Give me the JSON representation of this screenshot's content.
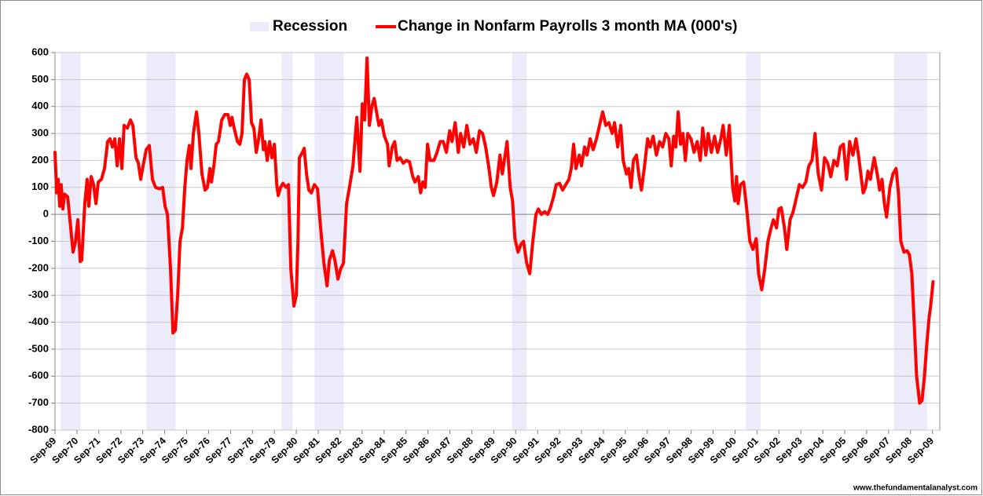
{
  "chart_data": {
    "type": "line",
    "x": [
      0,
      0.9,
      1.7,
      2.6,
      3.4,
      4.3,
      5.2,
      6.9,
      8.6,
      9.9,
      11.2,
      12.5,
      13.8,
      14.6,
      16.3,
      17.6,
      18.5,
      19.8,
      21.1,
      22.4,
      23.7,
      25.4,
      27.1,
      28.8,
      30.1,
      31.4,
      32.7,
      34.0,
      35.3,
      36.6,
      37.8,
      39.6,
      41.3,
      42.6,
      44.3,
      45.6,
      46.9,
      48.2,
      49.9,
      51.6,
      53.3,
      55.0,
      57.2,
      58.9,
      60.2,
      61.5,
      63.2,
      64.5,
      65.8,
      67.1,
      68.4,
      69.7,
      71.0,
      72.2,
      73.5,
      74.4,
      75.7,
      77.4,
      78.7,
      80.4,
      82.1,
      83.4,
      84.7,
      85.6,
      86.9,
      88.2,
      89.4,
      91.2,
      92.9,
      94.6,
      95.9,
      96.8,
      98.0,
      99.8,
      101.1,
      102.3,
      103.6,
      104.9,
      106.2,
      107.5,
      108.8,
      110.1,
      111.4,
      112.7,
      114.0,
      114.8,
      116.1,
      117.4,
      118.7,
      120.0,
      121.3,
      122.1,
      123.4,
      124.7,
      126.4,
      127.7,
      129.0,
      130.7,
      132.0,
      132.9,
      133.7,
      135.0,
      136.3,
      137.6,
      138.9,
      140.2,
      141.9,
      143.6,
      145.3,
      147.1,
      148.8,
      150.1,
      151.8,
      153.1,
      154.8,
      156.1,
      157.8,
      159.5,
      161.3,
      163.0,
      165.1,
      166.8,
      168.1,
      169.4,
      170.7,
      172.0,
      173.3,
      174.6,
      175.9,
      177.2,
      178.5,
      180.2,
      181.9,
      182.8,
      184.5,
      185.8,
      187.1,
      188.8,
      190.5,
      192.2,
      193.9,
      195.7,
      196.9,
      198.7,
      200.0,
      201.2,
      202.5,
      203.8,
      205.1,
      207.3,
      209.0,
      210.7,
      212.4,
      214.1,
      215.9,
      217.2,
      218.9,
      220.6,
      221.9,
      223.6,
      225.3,
      227.0,
      228.8,
      230.5,
      232.2,
      233.9,
      235.6,
      237.4,
      238.7,
      239.9,
      241.7,
      243.4,
      244.7,
      246.0,
      247.3,
      249.0,
      250.3,
      251.6,
      253.3,
      255.0,
      256.3,
      258.0,
      259.7,
      261.4,
      263.1,
      264.4,
      266.1,
      267.8,
      269.5,
      270.8,
      272.5,
      274.2,
      276.0,
      277.7,
      279.4,
      281.1,
      282.4,
      283.7,
      285.0,
      286.8,
      288.0,
      289.7,
      291.0,
      292.7,
      294.4,
      296.2,
      297.9,
      299.6,
      301.3,
      303.0,
      304.8,
      306.1,
      307.8,
      309.5,
      310.8,
      312.6,
      313.8,
      315.1,
      316.4,
      318.1,
      319.5,
      320.8,
      322.5,
      324.2,
      325.5,
      327.2,
      329.0,
      330.7,
      332.4,
      334.1,
      335.8,
      337.1,
      338.4,
      339.6,
      340.9,
      342.2,
      343.5,
      344.8,
      346.1,
      347.9,
      349.6,
      351.3,
      353.0,
      354.3,
      356.0,
      357.3,
      359.1,
      360.8,
      362.5,
      364.2,
      365.5,
      367.2,
      368.9,
      370.7,
      371.9,
      372.8,
      373.7,
      375.0,
      376.7,
      378.4,
      380.1,
      381.8,
      383.6,
      384.9,
      386.6,
      388.3,
      390.0,
      391.7,
      393.0,
      394.7,
      396.0,
      397.3,
      399.0,
      400.3,
      402.1,
      403.8,
      405.5,
      407.2,
      408.9,
      410.7,
      412.4,
      414.1,
      415.8,
      417.5,
      419.3,
      421.0,
      422.7,
      424.4,
      426.1,
      427.9,
      429.6,
      431.3,
      433.0,
      434.7,
      436.5,
      438.2,
      439.5,
      440.8,
      442.1,
      443.4,
      444.7,
      446.0,
      448.1,
      449.8,
      451.1,
      452.4,
      453.7,
      454.9,
      456.7,
      458.4,
      460.1,
      461.4,
      462.7,
      464.4,
      466.1,
      467.4,
      468.7,
      470.0,
      471.3,
      473.0,
      474.3,
      475.6,
      476.9,
      478.2,
      479.0,
      480.3
    ],
    "xlim": [
      0,
      484
    ],
    "xticks": [
      {
        "value": 0,
        "label": "Sep-69"
      },
      {
        "value": 12,
        "label": "Sep-70"
      },
      {
        "value": 24,
        "label": "Sep-71"
      },
      {
        "value": 36,
        "label": "Sep-72"
      },
      {
        "value": 48,
        "label": "Sep-73"
      },
      {
        "value": 60,
        "label": "Sep-74"
      },
      {
        "value": 72,
        "label": "Sep-75"
      },
      {
        "value": 84,
        "label": "Sep-76"
      },
      {
        "value": 96,
        "label": "Sep-77"
      },
      {
        "value": 108,
        "label": "Sep-78"
      },
      {
        "value": 120,
        "label": "Sep-79"
      },
      {
        "value": 132,
        "label": "Sep-80"
      },
      {
        "value": 144,
        "label": "Sep-81"
      },
      {
        "value": 156,
        "label": "Sep-82"
      },
      {
        "value": 168,
        "label": "Sep-83"
      },
      {
        "value": 180,
        "label": "Sep-84"
      },
      {
        "value": 192,
        "label": "Sep-85"
      },
      {
        "value": 204,
        "label": "Sep-86"
      },
      {
        "value": 216,
        "label": "Sep-87"
      },
      {
        "value": 228,
        "label": "Sep-88"
      },
      {
        "value": 240,
        "label": "Sep-89"
      },
      {
        "value": 252,
        "label": "Sep-90"
      },
      {
        "value": 264,
        "label": "Sep-91"
      },
      {
        "value": 276,
        "label": "Sep-92"
      },
      {
        "value": 288,
        "label": "Sep-93"
      },
      {
        "value": 300,
        "label": "Sep-94"
      },
      {
        "value": 312,
        "label": "Sep-95"
      },
      {
        "value": 324,
        "label": "Sep-96"
      },
      {
        "value": 336,
        "label": "Sep-97"
      },
      {
        "value": 348,
        "label": "Sep-98"
      },
      {
        "value": 360,
        "label": "Sep-99"
      },
      {
        "value": 372,
        "label": "Sep-00"
      },
      {
        "value": 384,
        "label": "Sep-01"
      },
      {
        "value": 396,
        "label": "Sep-02"
      },
      {
        "value": 408,
        "label": "Sep-03"
      },
      {
        "value": 420,
        "label": "Sep-04"
      },
      {
        "value": 432,
        "label": "Sep-05"
      },
      {
        "value": 444,
        "label": "Sep-06"
      },
      {
        "value": 456,
        "label": "Sep-07"
      },
      {
        "value": 468,
        "label": "Sep-08"
      },
      {
        "value": 480,
        "label": "Sep-09"
      }
    ],
    "ylim": [
      -800,
      600
    ],
    "yticks": [
      -800,
      -700,
      -600,
      -500,
      -400,
      -300,
      -200,
      -100,
      0,
      100,
      200,
      300,
      400,
      500,
      600
    ],
    "grid": true,
    "legend": "top",
    "recessions": {
      "name": "Recession",
      "color": "#ebebfa",
      "spans": [
        [
          3,
          14
        ],
        [
          50,
          66
        ],
        [
          124,
          130
        ],
        [
          142,
          158
        ],
        [
          250,
          258
        ],
        [
          378,
          386
        ],
        [
          459,
          477
        ]
      ]
    },
    "series": [
      {
        "name": "Change in Nonfarm Payrolls 3 month MA (000's)",
        "color": "#ff0000",
        "values": [
          230,
          80,
          130,
          30,
          110,
          20,
          75,
          65,
          -50,
          -140,
          -100,
          -20,
          -175,
          -170,
          40,
          130,
          30,
          140,
          110,
          40,
          120,
          130,
          170,
          270,
          280,
          250,
          280,
          180,
          280,
          170,
          330,
          320,
          350,
          330,
          210,
          190,
          130,
          180,
          240,
          255,
          130,
          100,
          95,
          100,
          30,
          0,
          -200,
          -440,
          -430,
          -300,
          -100,
          -50,
          100,
          200,
          255,
          170,
          300,
          380,
          300,
          150,
          90,
          100,
          170,
          120,
          180,
          260,
          270,
          350,
          370,
          370,
          330,
          360,
          320,
          270,
          260,
          300,
          500,
          520,
          500,
          340,
          320,
          230,
          280,
          350,
          240,
          270,
          200,
          270,
          210,
          260,
          110,
          70,
          100,
          115,
          100,
          110,
          -200,
          -340,
          -300,
          -100,
          210,
          225,
          245,
          150,
          90,
          80,
          110,
          95,
          -50,
          -180,
          -265,
          -170,
          -135,
          -170,
          -240,
          -205,
          -180,
          40,
          110,
          180,
          360,
          160,
          410,
          350,
          580,
          330,
          400,
          430,
          380,
          330,
          350,
          290,
          260,
          180,
          250,
          270,
          200,
          210,
          190,
          200,
          195,
          140,
          120,
          140,
          80,
          120,
          100,
          260,
          200,
          200,
          230,
          270,
          270,
          230,
          310,
          270,
          340,
          230,
          300,
          250,
          330,
          260,
          280,
          230,
          310,
          300,
          250,
          170,
          100,
          70,
          120,
          220,
          150,
          210,
          270,
          100,
          50,
          -90,
          -140,
          -110,
          -100,
          -180,
          -220,
          -100,
          0,
          20,
          0,
          10,
          0,
          20,
          60,
          110,
          115,
          90,
          110,
          130,
          170,
          260,
          170,
          220,
          180,
          250,
          220,
          280,
          240,
          280,
          330,
          380,
          330,
          340,
          300,
          340,
          250,
          330,
          200,
          150,
          170,
          100,
          200,
          220,
          140,
          90,
          180,
          280,
          250,
          290,
          220,
          270,
          250,
          300,
          280,
          180,
          290,
          250,
          380,
          260,
          300,
          200,
          300,
          280,
          230,
          270,
          200,
          320,
          220,
          300,
          230,
          290,
          230,
          280,
          330,
          220,
          330,
          100,
          50,
          140,
          40,
          110,
          120,
          20,
          -100,
          -130,
          -90,
          -220,
          -280,
          -200,
          -100,
          -50,
          -20,
          -50,
          20,
          25,
          -50,
          -130,
          -20,
          10,
          60,
          110,
          100,
          120,
          180,
          200,
          300,
          150,
          90,
          210,
          190,
          140,
          200,
          180,
          250,
          260,
          130,
          270,
          220,
          280,
          220,
          150,
          80,
          100,
          160,
          130,
          210,
          150,
          90,
          130,
          40,
          -10,
          100,
          150,
          170,
          80,
          -100,
          -140,
          -135,
          -150,
          -220,
          -400,
          -600,
          -700,
          -690,
          -600,
          -480,
          -380,
          -340,
          -250
        ]
      }
    ]
  },
  "source": "www.thefundamentalanalyst.com"
}
